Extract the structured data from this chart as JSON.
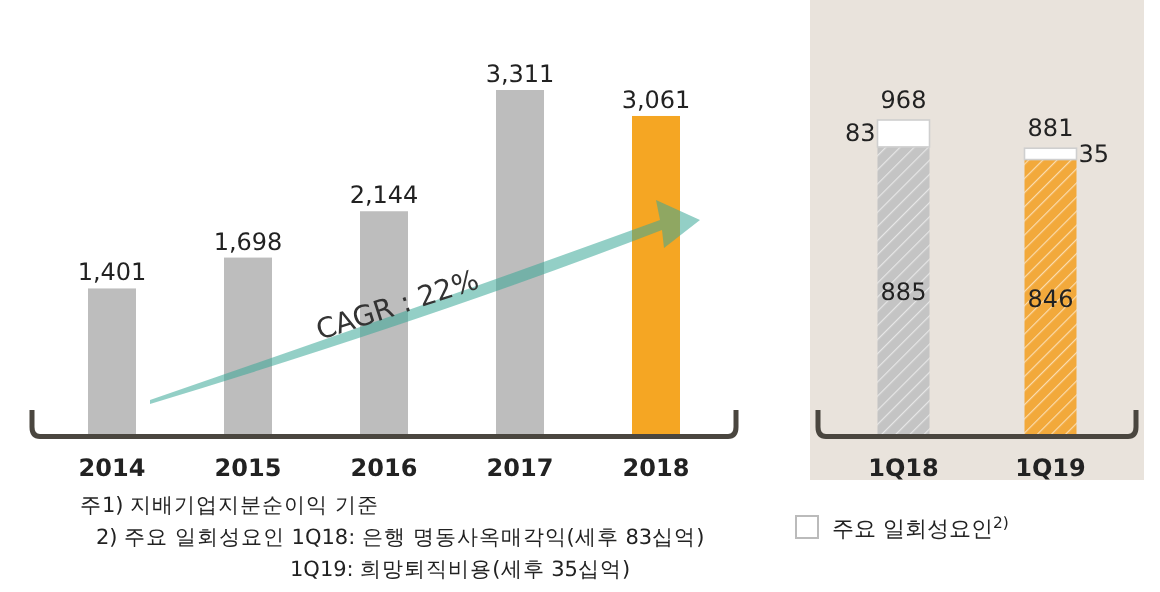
{
  "chart_data": [
    {
      "type": "bar",
      "categories": [
        "2014",
        "2015",
        "2016",
        "2017",
        "2018"
      ],
      "values": [
        1401,
        1698,
        2144,
        3311,
        3061
      ],
      "colors": [
        "#bdbdbd",
        "#bdbdbd",
        "#bdbdbd",
        "#bdbdbd",
        "#f5a623"
      ],
      "value_labels": [
        "1,401",
        "1,698",
        "2,144",
        "3,311",
        "3,061"
      ],
      "annotations": [
        "CAGR : 22%",
        "주1) 지배기업지분순이익 기준",
        "2) 주요 일회성요인 1Q18: 은행 명동사옥매각익(세후 83십억)",
        "1Q19: 희망퇴직비용(세후 35십억)"
      ]
    },
    {
      "type": "bar",
      "stacked": true,
      "categories": [
        "1Q18",
        "1Q19"
      ],
      "data_labels": true,
      "legend": "bottom left",
      "totals": [
        "968",
        "881"
      ],
      "series": [
        {
          "colors": [
            "#c4c4c4",
            "#f2a93b"
          ],
          "values": [
            885,
            846
          ]
        },
        {
          "name": "주요 일회성요인$^{2)}$",
          "color": "#ffffff",
          "values": [
            83,
            35
          ]
        }
      ]
    }
  ]
}
